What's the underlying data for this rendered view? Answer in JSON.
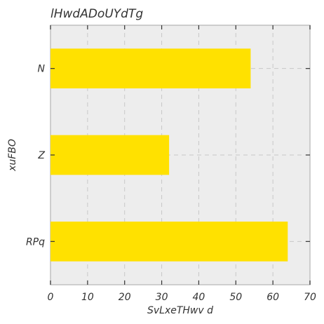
{
  "chart_data": {
    "type": "bar",
    "orientation": "horizontal",
    "title": "lHwdADoUYdTg",
    "xlabel": "SvLxeTHwv d",
    "ylabel": "xuFBO",
    "categories": [
      "RPq",
      "Z",
      "N"
    ],
    "values": [
      64,
      32,
      54
    ],
    "xlim": [
      0,
      70
    ],
    "xticks": [
      0,
      10,
      20,
      30,
      40,
      50,
      60,
      70
    ],
    "grid": true,
    "bar_color": "#ffe100",
    "background_color": "#ededed"
  }
}
